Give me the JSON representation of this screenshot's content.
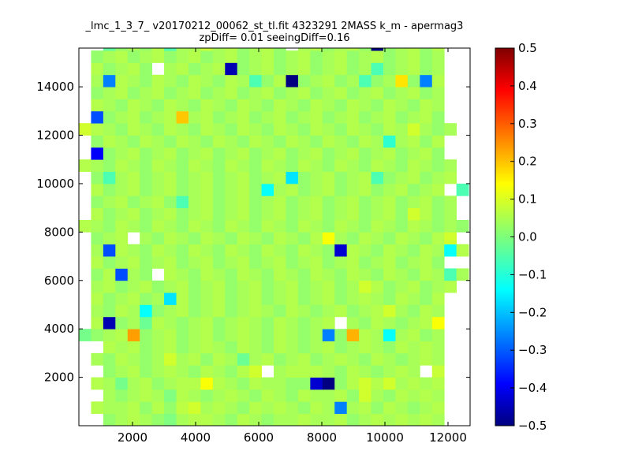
{
  "chart_data": {
    "type": "heatmap",
    "title_lines": [
      "_lmc_1_3_7_ v20170212_00062_st_tl.fit 4323291 2MASS k_m - apermag3",
      "zpDiff= 0.01 seeingDiff=0.16"
    ],
    "xlabel": "",
    "ylabel": "",
    "xlim": [
      300,
      12700
    ],
    "ylim": [
      0,
      15600
    ],
    "x_ticks": [
      2000,
      4000,
      6000,
      8000,
      10000,
      12000
    ],
    "y_ticks": [
      2000,
      4000,
      6000,
      8000,
      10000,
      12000,
      14000
    ],
    "x_tick_labels": [
      "2000",
      "4000",
      "6000",
      "8000",
      "10000",
      "12000"
    ],
    "y_tick_labels": [
      "2000",
      "4000",
      "6000",
      "8000",
      "10000",
      "12000",
      "14000"
    ],
    "colorbar": {
      "min": -0.5,
      "max": 0.5,
      "ticks": [
        0.5,
        0.4,
        0.3,
        0.2,
        0.1,
        0.0,
        -0.1,
        -0.2,
        -0.3,
        -0.4,
        -0.5
      ],
      "tick_labels": [
        "0.5",
        "0.4",
        "0.3",
        "0.2",
        "0.1",
        "0.0",
        "−0.1",
        "−0.2",
        "−0.3",
        "−0.4",
        "−0.5"
      ],
      "colormap": "jet"
    },
    "grid": false,
    "cell_size": [
      386,
      500
    ],
    "x_origin": 300,
    "rows_bottom_to_top": [
      [
        null,
        null,
        0.02,
        0.04,
        0.05,
        0.04,
        0.02,
        0.0,
        0.04,
        0.05,
        0.05,
        0.04,
        0.02,
        0.05,
        0.04,
        0.02,
        0.04,
        0.04,
        0.05,
        0.04,
        0.04,
        0.05,
        0.02,
        0.04,
        0.05,
        0.04,
        0.05,
        0.04,
        0.05,
        0.04,
        null,
        null
      ],
      [
        null,
        0.05,
        0.04,
        0.04,
        0.05,
        0.02,
        0.05,
        0.02,
        0.06,
        0.08,
        0.04,
        0.05,
        0.04,
        0.02,
        0.05,
        0.04,
        0.05,
        0.04,
        0.02,
        0.05,
        0.04,
        -0.25,
        0.04,
        0.05,
        0.02,
        0.05,
        0.04,
        0.02,
        0.04,
        0.05,
        null,
        null
      ],
      [
        null,
        null,
        0.04,
        0.02,
        0.04,
        0.05,
        0.04,
        0.0,
        0.05,
        0.04,
        0.02,
        0.04,
        0.05,
        0.04,
        0.02,
        0.05,
        0.04,
        0.02,
        0.05,
        0.04,
        0.04,
        0.05,
        0.02,
        0.08,
        0.04,
        0.02,
        0.05,
        0.04,
        0.05,
        0.04,
        null,
        null
      ],
      [
        null,
        0.05,
        0.04,
        -0.01,
        0.04,
        0.05,
        0.02,
        0.04,
        0.05,
        0.05,
        0.12,
        0.05,
        0.04,
        0.02,
        0.05,
        0.04,
        0.04,
        0.02,
        0.02,
        -0.42,
        -0.5,
        0.02,
        0.05,
        0.08,
        0.05,
        0.08,
        0.04,
        0.05,
        0.04,
        0.05,
        null,
        null
      ],
      [
        null,
        null,
        0.02,
        0.04,
        0.05,
        0.02,
        0.04,
        0.05,
        0.04,
        0.02,
        0.05,
        0.04,
        0.02,
        0.05,
        0.08,
        null,
        0.04,
        0.05,
        0.05,
        0.05,
        0.04,
        0.02,
        0.05,
        0.04,
        0.02,
        0.04,
        0.05,
        0.04,
        null,
        0.07,
        null,
        null
      ],
      [
        null,
        0.04,
        0.02,
        0.05,
        0.04,
        0.02,
        0.04,
        0.08,
        0.04,
        0.05,
        0.02,
        0.05,
        0.04,
        -0.02,
        0.04,
        0.05,
        0.02,
        0.04,
        0.05,
        0.02,
        0.04,
        0.05,
        0.04,
        0.02,
        0.05,
        0.04,
        0.02,
        0.04,
        0.05,
        0.04,
        null,
        null
      ],
      [
        null,
        null,
        0.05,
        0.04,
        0.05,
        0.02,
        0.04,
        0.05,
        0.02,
        0.04,
        0.05,
        0.04,
        0.02,
        0.05,
        0.04,
        0.02,
        0.05,
        0.04,
        0.02,
        0.04,
        0.05,
        0.02,
        0.04,
        0.05,
        0.04,
        0.02,
        0.05,
        0.04,
        0.05,
        0.04,
        null,
        null
      ],
      [
        -0.01,
        0.02,
        0.04,
        0.05,
        0.22,
        0.02,
        0.04,
        0.05,
        0.02,
        0.04,
        0.05,
        0.02,
        0.04,
        0.05,
        0.04,
        0.02,
        0.05,
        0.04,
        0.02,
        0.04,
        -0.25,
        0.02,
        0.2,
        0.05,
        0.04,
        -0.12,
        0.04,
        0.05,
        0.02,
        0.04,
        null,
        null
      ],
      [
        null,
        0.05,
        -0.45,
        0.02,
        0.04,
        -0.02,
        0.05,
        0.04,
        0.02,
        0.04,
        0.05,
        0.02,
        0.04,
        0.05,
        0.04,
        0.02,
        0.05,
        0.04,
        0.02,
        0.04,
        0.05,
        null,
        0.04,
        0.02,
        0.05,
        0.04,
        0.02,
        0.04,
        0.05,
        0.12,
        null,
        null
      ],
      [
        null,
        0.04,
        0.02,
        0.05,
        0.04,
        -0.12,
        0.02,
        0.04,
        0.05,
        0.02,
        0.04,
        0.05,
        0.02,
        0.04,
        0.05,
        0.04,
        0.02,
        0.05,
        0.04,
        0.02,
        0.04,
        0.05,
        0.02,
        0.04,
        0.05,
        0.08,
        0.04,
        0.02,
        0.05,
        0.04,
        null,
        null
      ],
      [
        null,
        0.05,
        0.02,
        0.04,
        0.05,
        0.02,
        0.04,
        -0.15,
        0.05,
        0.02,
        0.04,
        0.05,
        0.02,
        0.04,
        0.05,
        0.02,
        0.04,
        0.05,
        0.02,
        0.04,
        0.05,
        0.02,
        0.04,
        0.05,
        0.04,
        0.02,
        0.05,
        0.04,
        0.02,
        0.05,
        null,
        null
      ],
      [
        null,
        0.04,
        0.05,
        0.02,
        0.04,
        0.05,
        0.02,
        0.04,
        0.05,
        0.02,
        0.04,
        0.05,
        0.02,
        0.04,
        0.05,
        0.02,
        0.04,
        0.05,
        0.02,
        0.04,
        0.05,
        0.02,
        0.04,
        0.08,
        0.05,
        0.02,
        0.04,
        0.05,
        0.02,
        0.04,
        0.05,
        null
      ],
      [
        null,
        0.02,
        0.05,
        -0.3,
        0.04,
        0.02,
        null,
        0.05,
        0.04,
        0.02,
        0.05,
        0.04,
        0.02,
        0.05,
        0.04,
        0.02,
        0.05,
        0.04,
        0.02,
        0.05,
        0.04,
        0.02,
        0.05,
        0.04,
        0.02,
        0.05,
        0.04,
        0.02,
        0.05,
        0.04,
        -0.05,
        0.04
      ],
      [
        null,
        0.05,
        0.02,
        0.04,
        0.05,
        0.02,
        0.04,
        0.05,
        0.02,
        0.04,
        0.05,
        0.02,
        0.04,
        0.05,
        0.02,
        0.04,
        0.05,
        0.02,
        0.04,
        0.05,
        0.02,
        0.04,
        0.05,
        0.02,
        0.04,
        0.05,
        0.02,
        0.04,
        0.05,
        0.02,
        null,
        null
      ],
      [
        null,
        0.04,
        -0.3,
        0.05,
        0.04,
        0.02,
        0.05,
        0.04,
        0.02,
        0.05,
        0.04,
        0.02,
        0.05,
        0.04,
        0.02,
        0.05,
        0.04,
        0.02,
        0.05,
        0.04,
        0.02,
        -0.42,
        0.05,
        0.04,
        0.02,
        0.05,
        0.04,
        0.02,
        0.05,
        0.04,
        -0.12,
        0.05
      ],
      [
        null,
        0.02,
        0.04,
        0.05,
        null,
        0.04,
        0.02,
        0.05,
        0.04,
        0.02,
        0.05,
        0.04,
        0.02,
        0.05,
        0.04,
        0.02,
        0.05,
        0.04,
        0.02,
        0.05,
        0.12,
        0.04,
        0.02,
        0.05,
        0.04,
        0.02,
        0.05,
        0.04,
        0.02,
        0.05,
        0.08,
        null
      ],
      [
        0.05,
        0.04,
        0.02,
        0.05,
        0.04,
        0.02,
        0.05,
        0.04,
        0.02,
        0.05,
        0.04,
        0.02,
        0.05,
        0.04,
        0.02,
        0.05,
        0.04,
        0.02,
        0.05,
        0.04,
        0.02,
        0.05,
        0.04,
        0.02,
        0.05,
        0.04,
        0.02,
        0.05,
        0.04,
        0.02,
        0.04,
        0.02
      ],
      [
        null,
        0.05,
        0.02,
        0.04,
        0.05,
        0.02,
        0.04,
        0.05,
        0.02,
        0.04,
        0.05,
        0.02,
        0.04,
        0.05,
        0.02,
        0.04,
        0.05,
        0.02,
        0.04,
        0.05,
        0.02,
        0.04,
        0.05,
        0.02,
        0.04,
        0.05,
        0.02,
        0.08,
        0.05,
        0.02,
        0.04,
        null
      ],
      [
        null,
        0.02,
        0.04,
        0.05,
        0.02,
        0.04,
        0.05,
        0.02,
        -0.05,
        0.04,
        0.05,
        0.02,
        0.04,
        0.05,
        0.02,
        0.04,
        0.05,
        0.02,
        0.04,
        0.05,
        0.02,
        0.04,
        0.05,
        0.02,
        0.04,
        0.05,
        0.02,
        0.04,
        0.05,
        0.02,
        0.04,
        null
      ],
      [
        null,
        0.05,
        0.02,
        0.04,
        0.05,
        0.02,
        0.04,
        0.05,
        0.02,
        0.04,
        0.05,
        0.02,
        0.04,
        0.05,
        0.02,
        -0.12,
        0.04,
        0.05,
        0.02,
        0.04,
        0.05,
        0.02,
        0.04,
        0.05,
        0.02,
        0.04,
        0.05,
        0.02,
        0.04,
        0.05,
        null,
        -0.05
      ],
      [
        null,
        0.02,
        -0.05,
        0.04,
        0.05,
        0.02,
        0.04,
        0.05,
        0.02,
        0.04,
        0.05,
        0.02,
        0.04,
        0.05,
        0.02,
        0.04,
        0.05,
        -0.15,
        0.02,
        0.04,
        0.05,
        0.02,
        0.04,
        0.05,
        -0.05,
        0.02,
        0.04,
        0.05,
        0.02,
        0.04,
        0.05,
        null
      ],
      [
        0.05,
        0.04,
        0.02,
        0.05,
        0.04,
        0.02,
        0.05,
        0.04,
        0.02,
        0.05,
        0.04,
        0.02,
        0.05,
        0.04,
        0.02,
        0.05,
        0.04,
        0.02,
        0.05,
        0.04,
        0.02,
        0.05,
        0.04,
        0.02,
        0.05,
        0.04,
        0.02,
        0.05,
        0.04,
        0.02,
        0.04,
        null
      ],
      [
        null,
        -0.38,
        0.02,
        0.04,
        0.05,
        0.02,
        0.04,
        0.05,
        0.02,
        0.04,
        0.05,
        0.02,
        0.04,
        0.05,
        0.02,
        0.04,
        0.05,
        0.02,
        0.04,
        0.05,
        0.02,
        0.04,
        0.05,
        0.02,
        0.04,
        0.05,
        0.02,
        0.04,
        0.05,
        0.02,
        null,
        null
      ],
      [
        null,
        0.02,
        0.05,
        0.04,
        0.02,
        0.05,
        0.04,
        0.02,
        0.05,
        0.04,
        0.02,
        0.05,
        0.04,
        0.02,
        0.05,
        0.04,
        0.02,
        0.05,
        0.04,
        0.02,
        0.05,
        0.04,
        0.02,
        0.05,
        0.04,
        -0.08,
        0.04,
        0.05,
        0.02,
        0.05,
        null,
        null
      ],
      [
        0.08,
        0.05,
        0.04,
        0.02,
        0.05,
        0.04,
        0.02,
        0.05,
        0.04,
        0.02,
        0.05,
        0.04,
        0.02,
        0.05,
        0.04,
        0.02,
        0.05,
        0.04,
        0.02,
        0.05,
        0.04,
        0.02,
        0.05,
        0.04,
        0.02,
        0.05,
        0.04,
        0.08,
        0.04,
        0.02,
        0.04,
        null
      ],
      [
        null,
        -0.3,
        0.02,
        0.04,
        0.05,
        0.02,
        0.04,
        0.05,
        0.18,
        0.04,
        0.05,
        0.02,
        0.04,
        0.05,
        0.02,
        0.04,
        0.05,
        0.02,
        0.04,
        0.05,
        0.02,
        0.04,
        0.05,
        0.02,
        0.04,
        0.05,
        0.02,
        0.04,
        0.05,
        0.02,
        null,
        null
      ],
      [
        null,
        0.05,
        0.04,
        0.02,
        0.05,
        0.04,
        0.02,
        0.05,
        0.04,
        0.02,
        0.05,
        0.04,
        0.02,
        0.05,
        0.04,
        0.02,
        0.05,
        0.04,
        0.02,
        0.05,
        0.04,
        0.02,
        0.05,
        0.04,
        0.02,
        0.05,
        0.04,
        0.02,
        0.05,
        0.04,
        null,
        null
      ],
      [
        null,
        0.02,
        0.04,
        0.05,
        0.02,
        0.04,
        0.05,
        0.02,
        0.04,
        0.05,
        0.02,
        0.04,
        0.05,
        0.02,
        0.04,
        0.05,
        0.02,
        0.04,
        0.05,
        0.02,
        0.04,
        0.05,
        0.02,
        0.04,
        0.05,
        0.02,
        0.04,
        0.05,
        0.02,
        0.04,
        null,
        null
      ],
      [
        null,
        0.04,
        -0.25,
        0.05,
        0.04,
        0.02,
        0.05,
        0.04,
        0.02,
        0.05,
        0.04,
        0.02,
        0.05,
        0.04,
        -0.05,
        0.02,
        0.05,
        -0.55,
        0.02,
        0.04,
        0.05,
        0.02,
        0.04,
        -0.05,
        0.02,
        0.04,
        0.15,
        0.02,
        -0.25,
        0.05,
        null,
        null
      ],
      [
        null,
        0.05,
        0.02,
        0.04,
        0.05,
        0.02,
        null,
        0.04,
        0.05,
        0.02,
        0.04,
        0.05,
        -0.45,
        0.02,
        0.04,
        0.05,
        0.02,
        0.04,
        0.05,
        0.02,
        0.04,
        0.05,
        0.02,
        0.04,
        -0.05,
        0.02,
        0.04,
        0.05,
        0.02,
        0.04,
        null,
        null
      ],
      [
        null,
        0.02,
        0.04,
        0.05,
        0.02,
        0.04,
        0.05,
        0.02,
        0.04,
        0.05,
        0.02,
        0.04,
        0.05,
        0.02,
        0.04,
        0.05,
        0.02,
        0.04,
        0.05,
        0.02,
        0.04,
        0.05,
        0.02,
        0.04,
        0.05,
        0.02,
        0.04,
        0.05,
        0.02,
        0.04,
        null,
        null
      ],
      [
        null,
        null,
        -0.03,
        0.02,
        0.04,
        0.02,
        0.05,
        -0.05,
        0.04,
        0.04,
        0.07,
        0.04,
        0.05,
        0.02,
        0.04,
        0.05,
        0.02,
        null,
        0.04,
        0.05,
        0.02,
        0.04,
        0.05,
        0.02,
        -0.5,
        0.02,
        0.04,
        0.05,
        0.02,
        0.05,
        null,
        null
      ]
    ]
  }
}
